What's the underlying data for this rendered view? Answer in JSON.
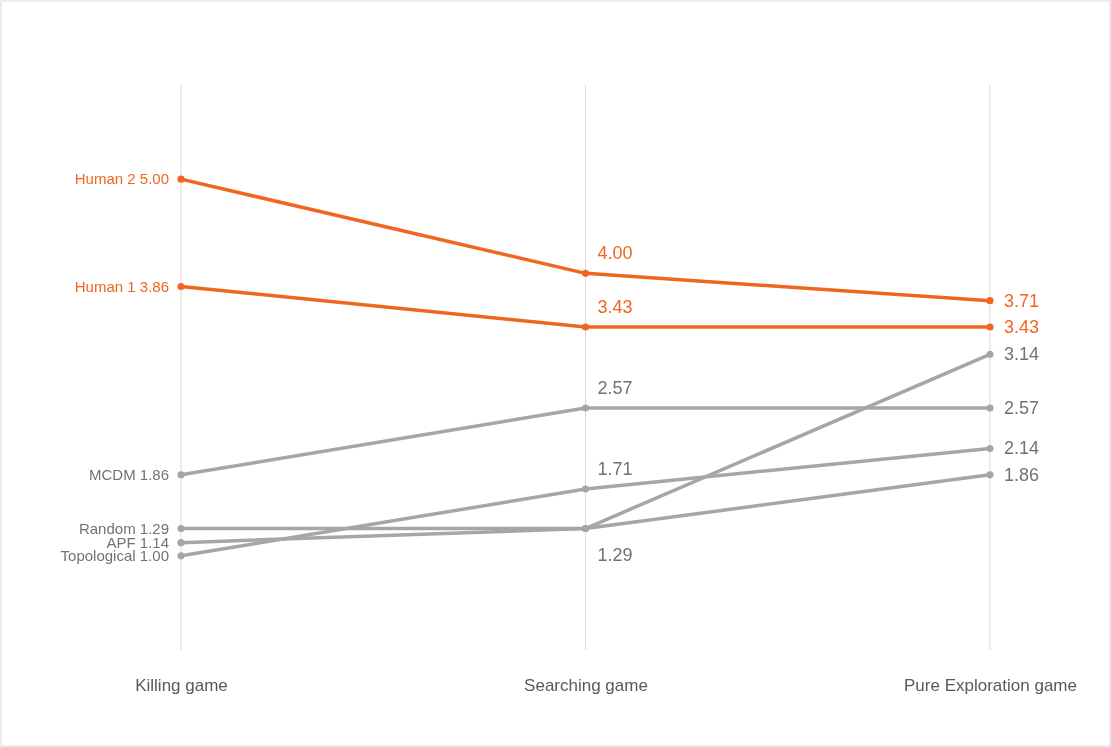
{
  "chart_data": {
    "type": "line",
    "categories": [
      "Killing game",
      "Searching game",
      "Pure Exploration game"
    ],
    "ylim": [
      0,
      6
    ],
    "grid": "x",
    "tick_labels": "x",
    "marker": "circle",
    "series": [
      {
        "name": "Human 2",
        "color": "#f0661e",
        "values": [
          5.0,
          4.0,
          3.71
        ],
        "value_labels": [
          "5.00",
          "4.00",
          "3.71"
        ]
      },
      {
        "name": "Human 1",
        "color": "#f0661e",
        "values": [
          3.86,
          3.43,
          3.43
        ],
        "value_labels": [
          "3.86",
          "3.43",
          "3.43"
        ]
      },
      {
        "name": "MCDM",
        "color": "#a6a6a6",
        "values": [
          1.86,
          2.57,
          2.57
        ],
        "value_labels": [
          "1.86",
          "2.57",
          "2.57"
        ]
      },
      {
        "name": "Random",
        "color": "#a6a6a6",
        "values": [
          1.29,
          1.29,
          3.14
        ],
        "value_labels": [
          "1.29",
          "1.29",
          "3.14"
        ]
      },
      {
        "name": "APF",
        "color": "#a6a6a6",
        "values": [
          1.14,
          1.29,
          1.86
        ],
        "value_labels": [
          "1.14",
          null,
          "1.86"
        ]
      },
      {
        "name": "Topological",
        "color": "#a6a6a6",
        "values": [
          1.0,
          1.71,
          2.14
        ],
        "value_labels": [
          "1.00",
          "1.71",
          "2.14"
        ]
      }
    ]
  }
}
